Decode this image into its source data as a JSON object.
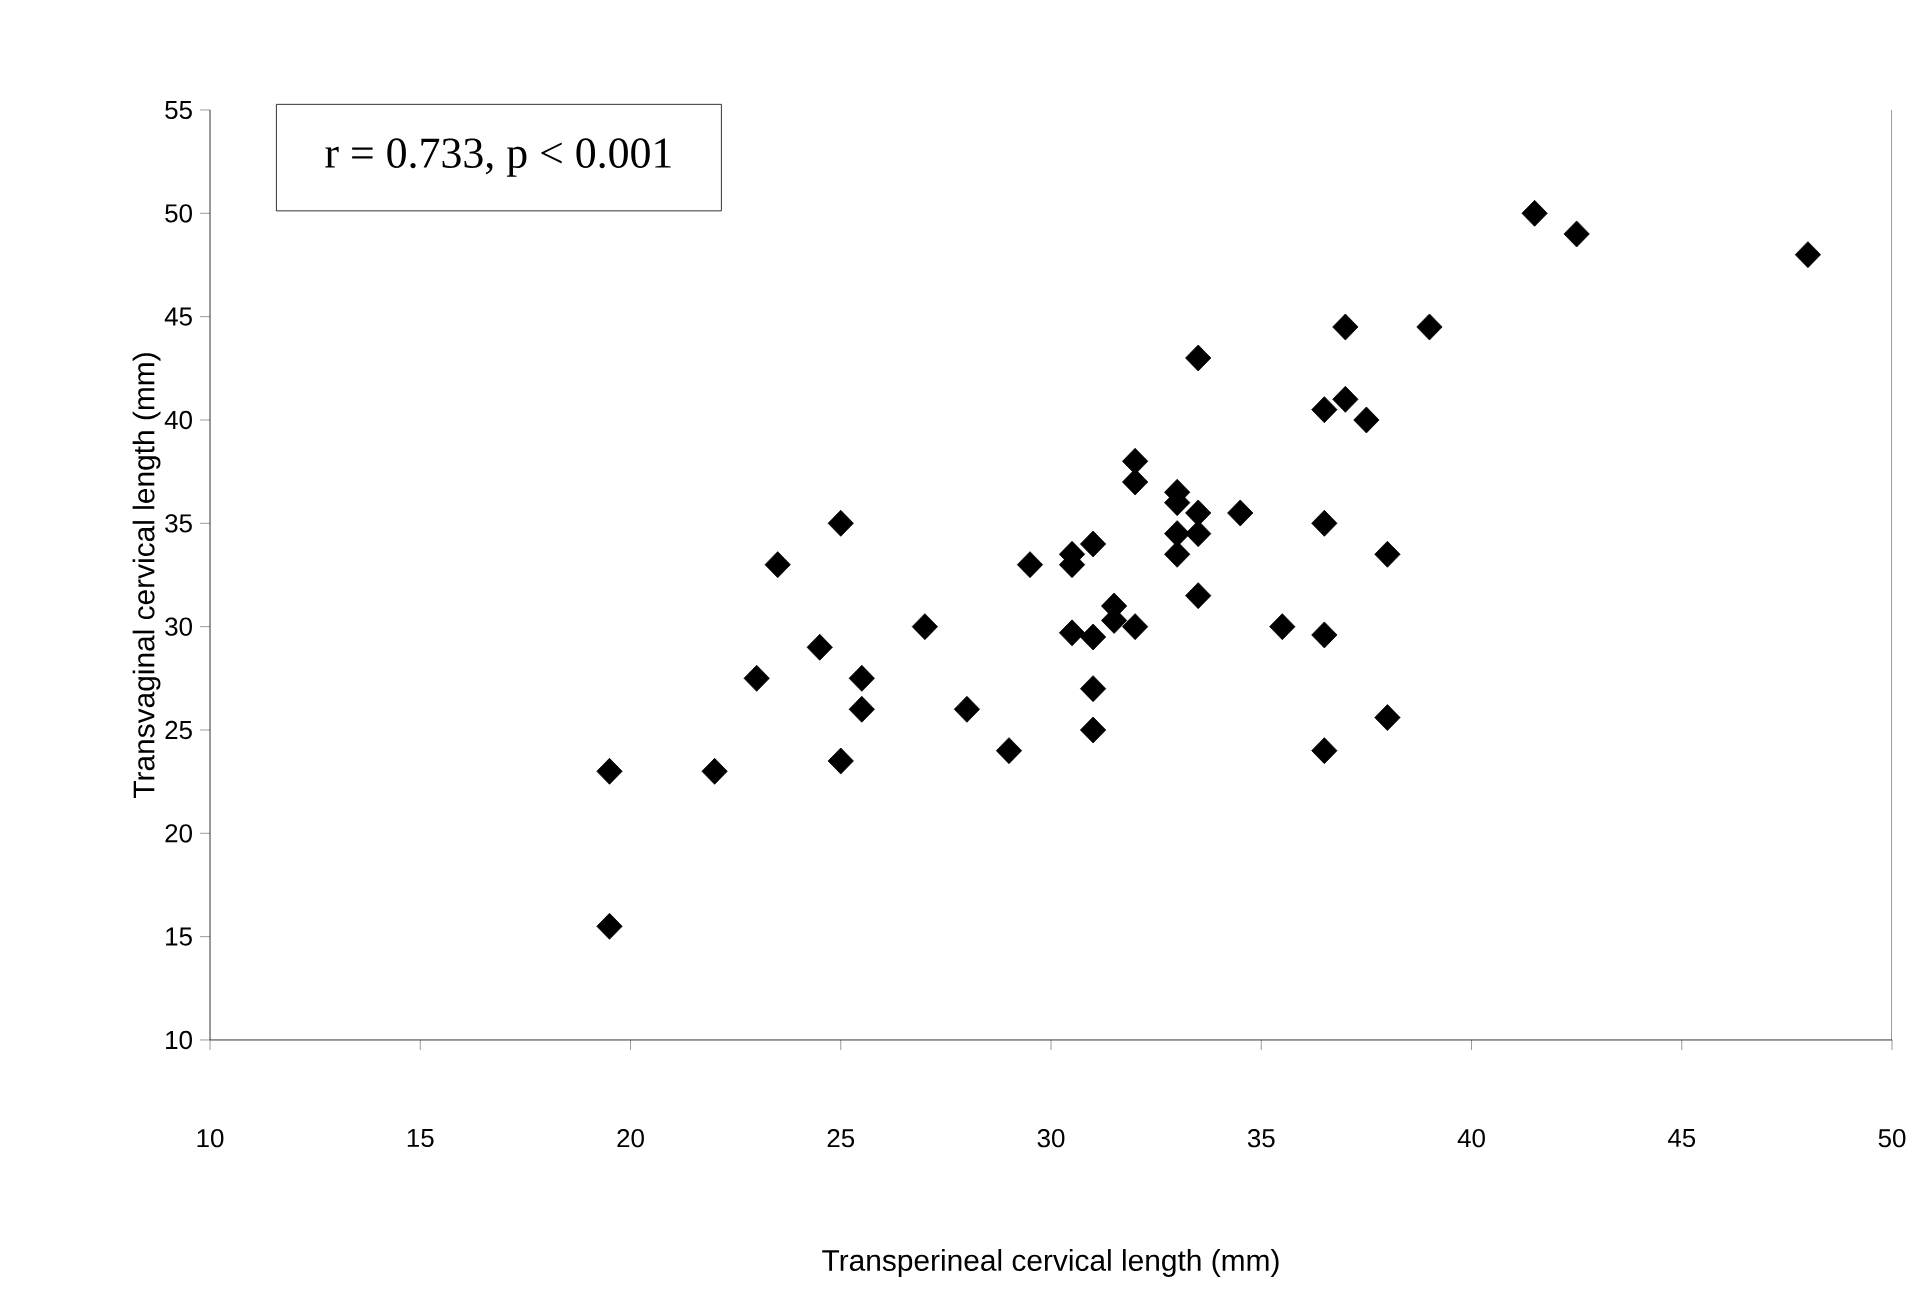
{
  "chart_data": {
    "type": "scatter",
    "xlabel": "Transperineal cervical length (mm)",
    "ylabel": "Transvaginal cervical length (mm)",
    "annotations": [
      "r = 0.733, p < 0.001"
    ],
    "x": [
      19.5,
      19.5,
      22,
      23,
      23.5,
      24.5,
      25,
      25,
      25.5,
      25.5,
      27,
      28,
      29,
      29.5,
      30.5,
      30.5,
      30.5,
      31,
      31,
      31,
      31,
      31.5,
      31.5,
      32,
      32,
      32,
      33,
      33,
      33,
      33,
      33.5,
      33.5,
      33.5,
      33.5,
      34.5,
      35.5,
      36.5,
      36.5,
      36.5,
      36.5,
      37,
      37,
      37.5,
      38,
      38,
      39,
      41.5,
      42.5,
      48
    ],
    "values": [
      23,
      15.5,
      23,
      27.5,
      33,
      29,
      35,
      23.5,
      27.5,
      26,
      30,
      26,
      24,
      33,
      33.5,
      33,
      29.7,
      34,
      29.5,
      27,
      25,
      31,
      30.3,
      30,
      38,
      37,
      36.5,
      36,
      34.5,
      33.5,
      35.5,
      34.5,
      31.5,
      43,
      35.5,
      30,
      40.5,
      35,
      29.6,
      24,
      44.5,
      41,
      40,
      33.5,
      25.6,
      44.5,
      50,
      49,
      48
    ],
    "color": "#000000",
    "marker": "diamond",
    "xlim": [
      10,
      50
    ],
    "ylim": [
      10,
      55
    ],
    "xticks": [
      10,
      15,
      20,
      25,
      30,
      35,
      40,
      45,
      50
    ],
    "yticks": [
      10,
      15,
      20,
      25,
      30,
      35,
      40,
      45,
      50,
      55
    ],
    "grid": false
  }
}
